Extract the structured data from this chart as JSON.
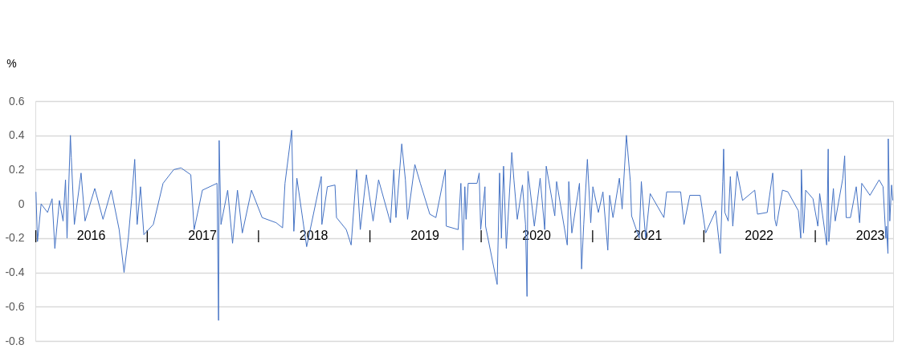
{
  "chart_data": {
    "type": "line",
    "ylabel": "%",
    "x": [
      "2016-01-03",
      "2016-01-08",
      "2016-01-20",
      "2016-02-10",
      "2016-02-25",
      "2016-03-05",
      "2016-03-20",
      "2016-04-01",
      "2016-04-09",
      "2016-04-14",
      "2016-04-25",
      "2016-04-28",
      "2016-05-08",
      "2016-05-30",
      "2016-06-12",
      "2016-07-14",
      "2016-08-10",
      "2016-09-06",
      "2016-10-02",
      "2016-10-18",
      "2016-11-01",
      "2016-11-12",
      "2016-11-22",
      "2016-11-30",
      "2016-12-11",
      "2016-12-22",
      "2017-01-22",
      "2017-02-23",
      "2017-03-30",
      "2017-04-23",
      "2017-05-25",
      "2017-06-05",
      "2017-07-02",
      "2017-08-19",
      "2017-08-24",
      "2017-08-26",
      "2017-09-01",
      "2017-09-23",
      "2017-10-09",
      "2017-10-25",
      "2017-11-10",
      "2017-12-10",
      "2018-01-14",
      "2018-03-01",
      "2018-03-22",
      "2018-03-30",
      "2018-04-21",
      "2018-04-28",
      "2018-05-08",
      "2018-06-09",
      "2018-07-27",
      "2018-07-29",
      "2018-08-16",
      "2018-09-10",
      "2018-09-15",
      "2018-10-17",
      "2018-11-02",
      "2018-11-20",
      "2018-12-02",
      "2018-12-22",
      "2019-01-13",
      "2019-01-31",
      "2019-03-11",
      "2019-03-22",
      "2019-03-29",
      "2019-04-17",
      "2019-04-29",
      "2019-05-06",
      "2019-05-30",
      "2019-06-17",
      "2019-07-18",
      "2019-08-07",
      "2019-09-07",
      "2019-09-10",
      "2019-10-19",
      "2019-10-28",
      "2019-11-04",
      "2019-11-10",
      "2019-11-14",
      "2019-11-21",
      "2019-12-20",
      "2019-12-27",
      "2020-01-01",
      "2020-01-15",
      "2020-01-17",
      "2020-02-24",
      "2020-03-03",
      "2020-03-09",
      "2020-03-16",
      "2020-03-25",
      "2020-04-12",
      "2020-04-19",
      "2020-04-30",
      "2020-05-17",
      "2020-05-27",
      "2020-06-01",
      "2020-06-04",
      "2020-06-25",
      "2020-07-14",
      "2020-07-29",
      "2020-08-03",
      "2020-08-31",
      "2020-09-06",
      "2020-10-11",
      "2020-10-16",
      "2020-10-26",
      "2020-11-20",
      "2020-11-27",
      "2020-12-04",
      "2020-12-16",
      "2020-12-27",
      "2021-01-03",
      "2021-01-21",
      "2021-02-05",
      "2021-02-21",
      "2021-02-27",
      "2021-03-10",
      "2021-03-31",
      "2021-04-09",
      "2021-04-23",
      "2021-05-06",
      "2021-05-10",
      "2021-06-04",
      "2021-06-11",
      "2021-06-25",
      "2021-07-10",
      "2021-08-24",
      "2021-09-02",
      "2021-10-18",
      "2021-10-29",
      "2021-11-17",
      "2021-12-21",
      "2022-01-08",
      "2022-02-10",
      "2022-02-25",
      "2022-03-05",
      "2022-03-08",
      "2022-03-12",
      "2022-03-23",
      "2022-03-30",
      "2022-04-07",
      "2022-04-21",
      "2022-05-09",
      "2022-06-18",
      "2022-06-27",
      "2022-07-29",
      "2022-08-16",
      "2022-08-23",
      "2022-08-28",
      "2022-09-17",
      "2022-10-05",
      "2022-11-08",
      "2022-11-16",
      "2022-11-18",
      "2022-11-25",
      "2022-12-02",
      "2022-12-26",
      "2023-01-11",
      "2023-01-17",
      "2023-02-09",
      "2023-02-14",
      "2023-02-16",
      "2023-03-03",
      "2023-03-09",
      "2023-04-03",
      "2023-04-09",
      "2023-04-14",
      "2023-04-28",
      "2023-05-17",
      "2023-05-28",
      "2023-06-04",
      "2023-07-01",
      "2023-07-31",
      "2023-08-13",
      "2023-08-22",
      "2023-08-24",
      "2023-08-29",
      "2023-08-30",
      "2023-09-04",
      "2023-09-10",
      "2023-09-14"
    ],
    "series": [
      {
        "color": "#4472c4",
        "values": [
          0.07,
          -0.22,
          0.0,
          -0.05,
          0.03,
          -0.26,
          0.02,
          -0.1,
          0.14,
          -0.2,
          0.4,
          0.27,
          -0.12,
          0.18,
          -0.1,
          0.09,
          -0.09,
          0.08,
          -0.15,
          -0.4,
          -0.2,
          0.03,
          0.26,
          -0.12,
          0.1,
          -0.18,
          -0.12,
          0.12,
          0.2,
          0.21,
          0.17,
          -0.15,
          0.08,
          0.12,
          -0.68,
          0.37,
          -0.12,
          0.08,
          -0.23,
          0.08,
          -0.17,
          0.08,
          -0.08,
          -0.11,
          -0.14,
          0.12,
          0.43,
          -0.16,
          0.15,
          -0.25,
          0.16,
          -0.12,
          0.1,
          0.11,
          -0.08,
          -0.15,
          -0.24,
          0.2,
          -0.15,
          0.17,
          -0.1,
          0.14,
          -0.11,
          0.2,
          -0.08,
          0.35,
          0.14,
          -0.09,
          0.23,
          0.12,
          -0.06,
          -0.08,
          0.2,
          -0.13,
          -0.15,
          0.12,
          -0.27,
          0.1,
          -0.09,
          0.12,
          0.12,
          0.18,
          -0.15,
          0.1,
          -0.13,
          -0.47,
          0.18,
          -0.2,
          0.22,
          -0.26,
          0.3,
          0.14,
          -0.09,
          0.11,
          -0.12,
          -0.54,
          0.19,
          -0.13,
          0.15,
          -0.15,
          0.22,
          -0.07,
          0.13,
          -0.24,
          0.13,
          -0.17,
          0.12,
          -0.38,
          -0.12,
          0.26,
          -0.11,
          0.1,
          -0.05,
          0.07,
          -0.27,
          0.05,
          -0.08,
          0.15,
          -0.03,
          0.4,
          0.13,
          -0.07,
          -0.2,
          0.13,
          -0.2,
          0.06,
          -0.08,
          0.07,
          0.07,
          -0.12,
          0.05,
          0.05,
          -0.17,
          -0.04,
          -0.29,
          0.13,
          0.32,
          -0.05,
          -0.1,
          0.16,
          -0.13,
          0.19,
          0.02,
          0.08,
          -0.06,
          -0.05,
          0.18,
          -0.09,
          -0.13,
          0.08,
          0.07,
          -0.04,
          -0.2,
          0.2,
          -0.17,
          0.08,
          0.03,
          -0.13,
          0.06,
          -0.24,
          0.32,
          -0.22,
          0.09,
          -0.1,
          0.15,
          0.28,
          -0.08,
          -0.08,
          0.1,
          -0.11,
          0.12,
          0.05,
          0.14,
          0.1,
          -0.2,
          -0.13,
          -0.29,
          0.38,
          -0.1,
          0.11,
          0.02
        ]
      }
    ],
    "xlim": [
      "2016-01-01",
      "2023-09-15"
    ],
    "xticks": [
      {
        "value": "2016-01-01",
        "label": "|"
      },
      {
        "value": "2016-07-01",
        "label": "2016"
      },
      {
        "value": "2017-01-01",
        "label": "|"
      },
      {
        "value": "2017-07-01",
        "label": "2017"
      },
      {
        "value": "2018-01-01",
        "label": "|"
      },
      {
        "value": "2018-07-01",
        "label": "2018"
      },
      {
        "value": "2019-01-01",
        "label": "|"
      },
      {
        "value": "2019-07-01",
        "label": "2019"
      },
      {
        "value": "2020-01-01",
        "label": "|"
      },
      {
        "value": "2020-07-01",
        "label": "2020"
      },
      {
        "value": "2021-01-01",
        "label": "|"
      },
      {
        "value": "2021-07-01",
        "label": "2021"
      },
      {
        "value": "2022-01-01",
        "label": "|"
      },
      {
        "value": "2022-07-01",
        "label": "2022"
      },
      {
        "value": "2023-01-01",
        "label": "|"
      },
      {
        "value": "2023-07-01",
        "label": "2023"
      }
    ],
    "ylim": [
      -0.8,
      0.6
    ],
    "yticks": [
      {
        "value": -0.8,
        "label": "-0.8"
      },
      {
        "value": -0.6,
        "label": "-0.6"
      },
      {
        "value": -0.4,
        "label": "-0.4"
      },
      {
        "value": -0.2,
        "label": "-0.2"
      },
      {
        "value": 0,
        "label": "0"
      },
      {
        "value": 0.2,
        "label": "0.2"
      },
      {
        "value": 0.4,
        "label": "0.4"
      },
      {
        "value": 0.6,
        "label": "0.6"
      }
    ],
    "grid": "y",
    "marker": "none",
    "line_style": "solid"
  }
}
